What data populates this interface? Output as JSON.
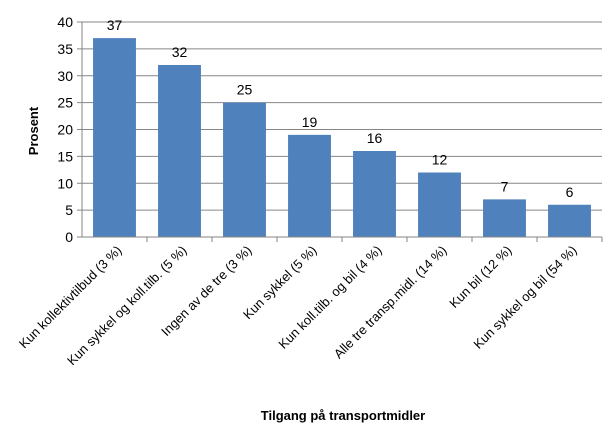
{
  "chart_data": {
    "type": "bar",
    "categories": [
      "Kun kollektivtilbud (3 %)",
      "Kun sykkel og koll.tilb. (5 %)",
      "Ingen av de tre (3 %)",
      "Kun sykkel (5 %)",
      "Kun koll.tilb. og bil (4 %)",
      "Alle tre transp.midl. (14 %)",
      "Kun bil (12 %)",
      "Kun sykkel og bil (54 %)"
    ],
    "values": [
      37,
      32,
      25,
      19,
      16,
      12,
      7,
      6
    ],
    "data_labels": [
      "37",
      "32",
      "25",
      "19",
      "16",
      "12",
      "7",
      "6"
    ],
    "title": "",
    "xlabel": "Tilgang på transportmidler",
    "ylabel": "Prosent",
    "ylim": [
      0,
      40
    ],
    "yticks": [
      0,
      5,
      10,
      15,
      20,
      25,
      30,
      35,
      40
    ],
    "grid": true,
    "bar_color": "#4f81bd",
    "grid_color": "#868686"
  }
}
